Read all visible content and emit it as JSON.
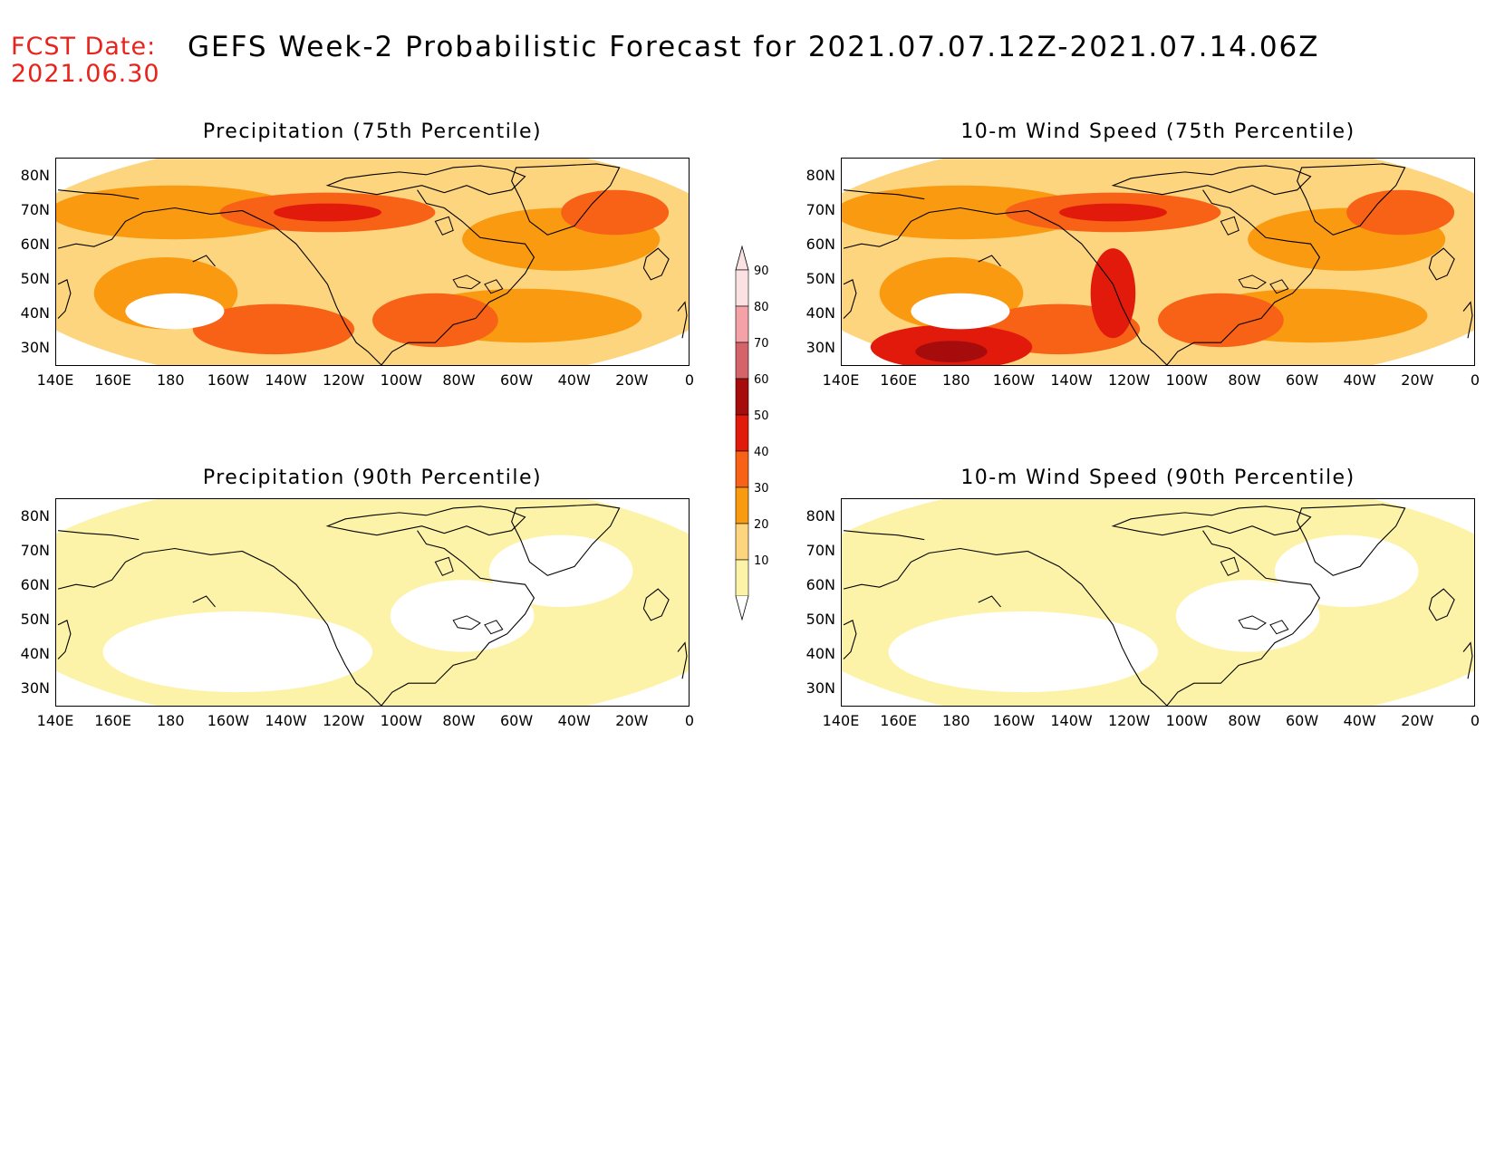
{
  "header": {
    "fcst_label": "FCST Date:",
    "fcst_date": "2021.06.30",
    "title": "GEFS Week-2 Probabilistic Forecast for 2021.07.07.12Z-2021.07.14.06Z"
  },
  "panels": [
    {
      "id": "precip75",
      "title": "Precipitation (75th Percentile)",
      "level": 0.55
    },
    {
      "id": "wind75",
      "title": "10-m Wind Speed (75th Percentile)",
      "level": 0.75
    },
    {
      "id": "precip90",
      "title": "Precipitation (90th Percentile)",
      "level": 0.15
    },
    {
      "id": "wind90",
      "title": "10-m Wind Speed (90th Percentile)",
      "level": 0.25
    }
  ],
  "lat_labels": [
    "80N",
    "70N",
    "60N",
    "50N",
    "40N",
    "30N"
  ],
  "lon_labels": [
    "140E",
    "160E",
    "180",
    "160W",
    "140W",
    "120W",
    "100W",
    "80W",
    "60W",
    "40W",
    "20W",
    "0"
  ],
  "colorbar": {
    "levels": [
      "90",
      "80",
      "70",
      "60",
      "50",
      "40",
      "30",
      "20",
      "10"
    ],
    "colors": [
      "#fbe2e2",
      "#f4a2a8",
      "#d5646a",
      "#a70c0c",
      "#e21a0c",
      "#f86216",
      "#fa9a10",
      "#fdd57e",
      "#fdf3a8"
    ]
  }
}
